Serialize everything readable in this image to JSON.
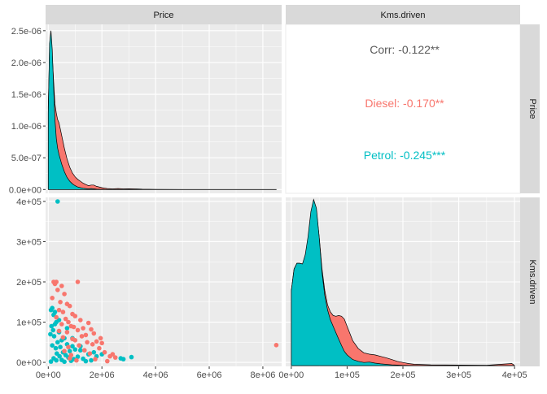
{
  "colors": {
    "diesel": "#F8766D",
    "petrol": "#00BFC4",
    "panel_bg": "#EBEBEB",
    "strip_bg": "#D9D9D9",
    "overall": "#595959"
  },
  "strips": {
    "top": [
      "Price",
      "Kms.driven"
    ],
    "right": [
      "Price",
      "Kms.driven"
    ]
  },
  "chart_data": {
    "type": "scatter-matrix",
    "variables": [
      "Price",
      "Kms.driven"
    ],
    "groups": [
      "Diesel",
      "Petrol"
    ],
    "correlation": {
      "overall": "Corr: -0.122**",
      "groups": [
        {
          "name": "Diesel",
          "label": "Diesel: -0.170**"
        },
        {
          "name": "Petrol",
          "label": "Petrol: -0.245***"
        }
      ]
    },
    "price_axis": {
      "xlim": [
        -100000,
        8700000
      ],
      "ticks": [
        0,
        2000000,
        4000000,
        6000000,
        8000000
      ],
      "tick_labels": [
        "0e+00",
        "2e+06",
        "4e+06",
        "6e+06",
        "8e+06"
      ]
    },
    "kms_axis": {
      "xlim": [
        -10000,
        410000
      ],
      "ticks": [
        0,
        100000,
        200000,
        300000,
        400000
      ],
      "tick_labels": [
        "0e+00",
        "1e+05",
        "2e+05",
        "3e+05",
        "4e+05"
      ]
    },
    "price_density": {
      "ylim": [
        -6e-08,
        2.6e-06
      ],
      "ticks": [
        0,
        5e-07,
        1e-06,
        1.5e-06,
        2e-06,
        2.5e-06
      ],
      "tick_labels": [
        "0.0e+00",
        "5.0e-07",
        "1.0e-06",
        "1.5e-06",
        "2.0e-06",
        "2.5e-06"
      ],
      "x": [
        0,
        50000,
        100000,
        150000,
        200000,
        250000,
        300000,
        350000,
        400000,
        500000,
        600000,
        700000,
        800000,
        900000,
        1000000,
        1100000,
        1200000,
        1300000,
        1400000,
        1500000,
        1600000,
        1700000,
        1800000,
        2000000,
        2200000,
        2400000,
        2600000,
        2800000,
        3000000,
        3200000,
        3500000,
        4000000,
        5000000,
        6000000,
        7000000,
        8000000,
        8500000
      ],
      "series": [
        {
          "name": "Diesel",
          "values": [
            1.3e-06,
            2.2e-06,
            2.35e-06,
            2.1e-06,
            1.7e-06,
            1.35e-06,
            1.2e-06,
            1.1e-06,
            1.05e-06,
            8.5e-07,
            6.5e-07,
            4.8e-07,
            3.5e-07,
            2.6e-07,
            2e-07,
            1.6e-07,
            1.3e-07,
            1e-07,
            8e-08,
            6e-08,
            7e-08,
            7e-08,
            5e-08,
            3e-08,
            1.5e-08,
            1e-08,
            1.5e-08,
            1e-08,
            1.2e-08,
            1e-08,
            5e-09,
            3e-09,
            2e-09,
            2e-09,
            2e-09,
            2e-09,
            1e-09
          ]
        },
        {
          "name": "Petrol",
          "values": [
            1.2e-06,
            2.3e-06,
            2.5e-06,
            2.2e-06,
            1.6e-06,
            1.1e-06,
            8e-07,
            6.5e-07,
            5.5e-07,
            4e-07,
            2.8e-07,
            1.9e-07,
            1.3e-07,
            9e-08,
            6e-08,
            4e-08,
            3e-08,
            2e-08,
            1.5e-08,
            1e-08,
            1.5e-08,
            1e-08,
            5e-09,
            3e-09,
            2e-09,
            1e-09,
            1e-09,
            1e-09,
            1e-09,
            0,
            0,
            0,
            0,
            0,
            0,
            0,
            0
          ]
        }
      ]
    },
    "kms_density": {
      "ylim": [
        -1e-07,
        2.35e-05
      ],
      "x": [
        0,
        5000,
        10000,
        15000,
        20000,
        25000,
        30000,
        35000,
        40000,
        45000,
        50000,
        55000,
        60000,
        65000,
        70000,
        75000,
        80000,
        85000,
        90000,
        95000,
        100000,
        110000,
        120000,
        130000,
        140000,
        150000,
        160000,
        170000,
        180000,
        190000,
        200000,
        210000,
        220000,
        250000,
        300000,
        350000,
        395000,
        400000
      ],
      "series": [
        {
          "name": "Diesel",
          "values": [
            1.05e-05,
            1.35e-05,
            1.43e-05,
            1.43e-05,
            1.42e-05,
            1.5e-05,
            1.75e-05,
            2.1e-05,
            2.25e-05,
            2.15e-05,
            1.8e-05,
            1.35e-05,
            1.05e-05,
            8.5e-06,
            7.5e-06,
            7e-06,
            6.9e-06,
            7e-06,
            6.9e-06,
            6.5e-06,
            5.5e-06,
            3.5e-06,
            2.4e-06,
            1.8e-06,
            1.6e-06,
            1.5e-06,
            1.3e-06,
            1.1e-06,
            8.5e-07,
            6e-07,
            4.5e-07,
            3e-07,
            2e-07,
            1.2e-07,
            8e-08,
            6e-08,
            3e-07,
            5e-08
          ]
        },
        {
          "name": "Petrol",
          "values": [
            1.05e-05,
            1.35e-05,
            1.43e-05,
            1.43e-05,
            1.42e-05,
            1.55e-05,
            1.8e-05,
            2.15e-05,
            2.32e-05,
            2.2e-05,
            1.8e-05,
            1.3e-05,
            9.8e-06,
            7.8e-06,
            6.4e-06,
            5.5e-06,
            4.6e-06,
            3.7e-06,
            2.8e-06,
            2e-06,
            1.5e-06,
            8.5e-07,
            6e-07,
            4.5e-07,
            5e-07,
            3.5e-07,
            2.5e-07,
            1.8e-07,
            1.2e-07,
            8e-08,
            5e-08,
            2e-08,
            1e-08,
            0,
            0,
            0,
            0,
            0
          ]
        }
      ]
    },
    "scatter": {
      "ylim": [
        -10000,
        410000
      ],
      "y_ticks": [
        0,
        100000,
        200000,
        300000,
        400000
      ],
      "y_tick_labels": [
        "0e+00",
        "1e+05",
        "2e+05",
        "3e+05",
        "4e+05"
      ],
      "series": [
        {
          "name": "Petrol",
          "points": [
            [
              350000,
              400000
            ],
            [
              150000,
              135000
            ],
            [
              100000,
              130000
            ],
            [
              200000,
              118000
            ],
            [
              300000,
              100000
            ],
            [
              250000,
              95000
            ],
            [
              120000,
              90000
            ],
            [
              180000,
              80000
            ],
            [
              400000,
              75000
            ],
            [
              80000,
              70000
            ],
            [
              220000,
              65000
            ],
            [
              600000,
              60000
            ],
            [
              500000,
              55000
            ],
            [
              350000,
              50000
            ],
            [
              700000,
              45000
            ],
            [
              150000,
              42000
            ],
            [
              900000,
              40000
            ],
            [
              450000,
              38000
            ],
            [
              280000,
              35000
            ],
            [
              1000000,
              32000
            ],
            [
              1200000,
              30000
            ],
            [
              800000,
              28000
            ],
            [
              550000,
              25000
            ],
            [
              320000,
              22000
            ],
            [
              1500000,
              20000
            ],
            [
              650000,
              18000
            ],
            [
              420000,
              15000
            ],
            [
              1100000,
              14000
            ],
            [
              750000,
              12000
            ],
            [
              200000,
              10000
            ],
            [
              1300000,
              9000
            ],
            [
              950000,
              8000
            ],
            [
              500000,
              6000
            ],
            [
              300000,
              5000
            ],
            [
              850000,
              4000
            ],
            [
              1400000,
              3000
            ],
            [
              100000,
              2000
            ],
            [
              600000,
              1500
            ],
            [
              1700000,
              25000
            ],
            [
              1800000,
              15000
            ],
            [
              2000000,
              20000
            ],
            [
              2800000,
              8000
            ],
            [
              3100000,
              13000
            ],
            [
              2700000,
              10000
            ],
            [
              1600000,
              5000
            ],
            [
              1200000,
              40000
            ],
            [
              900000,
              60000
            ],
            [
              700000,
              85000
            ],
            [
              400000,
              105000
            ],
            [
              250000,
              125000
            ]
          ]
        },
        {
          "name": "Diesel",
          "points": [
            [
              200000,
              200000
            ],
            [
              300000,
              200000
            ],
            [
              250000,
              195000
            ],
            [
              500000,
              190000
            ],
            [
              1100000,
              200000
            ],
            [
              350000,
              180000
            ],
            [
              600000,
              170000
            ],
            [
              150000,
              160000
            ],
            [
              450000,
              150000
            ],
            [
              700000,
              145000
            ],
            [
              800000,
              140000
            ],
            [
              400000,
              130000
            ],
            [
              550000,
              125000
            ],
            [
              900000,
              120000
            ],
            [
              1000000,
              115000
            ],
            [
              300000,
              112000
            ],
            [
              650000,
              108000
            ],
            [
              1200000,
              105000
            ],
            [
              750000,
              100000
            ],
            [
              1500000,
              98000
            ],
            [
              500000,
              95000
            ],
            [
              850000,
              90000
            ],
            [
              950000,
              88000
            ],
            [
              1300000,
              85000
            ],
            [
              1600000,
              82000
            ],
            [
              1100000,
              80000
            ],
            [
              400000,
              78000
            ],
            [
              700000,
              75000
            ],
            [
              1700000,
              72000
            ],
            [
              1400000,
              68000
            ],
            [
              1250000,
              65000
            ],
            [
              550000,
              62000
            ],
            [
              900000,
              58000
            ],
            [
              1000000,
              55000
            ],
            [
              1800000,
              52000
            ],
            [
              2000000,
              48000
            ],
            [
              1650000,
              45000
            ],
            [
              1150000,
              42000
            ],
            [
              750000,
              38000
            ],
            [
              1900000,
              35000
            ],
            [
              1350000,
              30000
            ],
            [
              600000,
              28000
            ],
            [
              2100000,
              25000
            ],
            [
              1550000,
              22000
            ],
            [
              850000,
              18000
            ],
            [
              2300000,
              15000
            ],
            [
              2500000,
              12000
            ],
            [
              1750000,
              8000
            ],
            [
              1050000,
              5000
            ],
            [
              2200000,
              3000
            ],
            [
              8500000,
              43000
            ],
            [
              1950000,
              60000
            ],
            [
              1450000,
              50000
            ],
            [
              2400000,
              20000
            ],
            [
              800000,
              10000
            ]
          ]
        }
      ]
    }
  }
}
